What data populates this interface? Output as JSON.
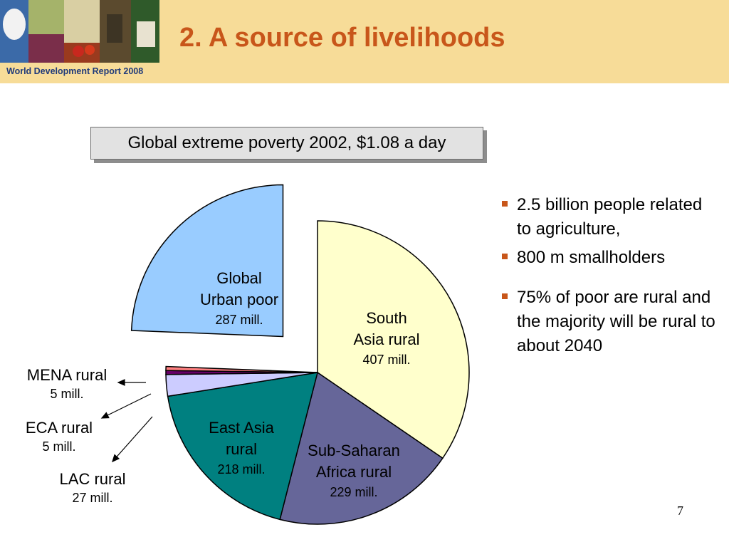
{
  "header": {
    "subtitle": "World Development Report 2008",
    "title": "2. A source of livelihoods",
    "background_color": "#f7dc98",
    "title_color": "#c8561a",
    "subtitle_color": "#1f3a7a",
    "banner_image": "photo-collage"
  },
  "chart_data": {
    "type": "pie",
    "title": "Global extreme poverty 2002, $1.08 a day",
    "unit": "mill.",
    "slices": [
      {
        "name": "South Asia rural",
        "label_lines": [
          "South",
          "Asia rural"
        ],
        "value_label": "407 mill.",
        "value": 407,
        "color": "#ffffcc",
        "exploded": false
      },
      {
        "name": "Sub-Saharan Africa rural",
        "label_lines": [
          "Sub-Saharan",
          "Africa rural"
        ],
        "value_label": "229 mill.",
        "value": 229,
        "color": "#666699",
        "exploded": false
      },
      {
        "name": "East Asia rural",
        "label_lines": [
          "East Asia",
          "rural"
        ],
        "value_label": "218 mill.",
        "value": 218,
        "color": "#008080",
        "exploded": false
      },
      {
        "name": "LAC rural",
        "label_lines": [
          "LAC rural"
        ],
        "value_label": "27 mill.",
        "value": 27,
        "color": "#ccccff",
        "exploded": false
      },
      {
        "name": "ECA rural",
        "label_lines": [
          "ECA rural"
        ],
        "value_label": "5 mill.",
        "value": 5,
        "color": "#660066",
        "exploded": false
      },
      {
        "name": "MENA rural",
        "label_lines": [
          "MENA rural"
        ],
        "value_label": "5 mill.",
        "value": 5,
        "color": "#ff8080",
        "exploded": false
      },
      {
        "name": "Global Urban poor",
        "label_lines": [
          "Global",
          "Urban poor"
        ],
        "value_label": "287 mill.",
        "value": 287,
        "color": "#99ccff",
        "exploded": true
      }
    ]
  },
  "bullets": [
    "2.5 billion people related to agriculture,",
    "800 m smallholders",
    "75% of poor are rural and the majority will be rural to about 2040"
  ],
  "page_number": "7"
}
